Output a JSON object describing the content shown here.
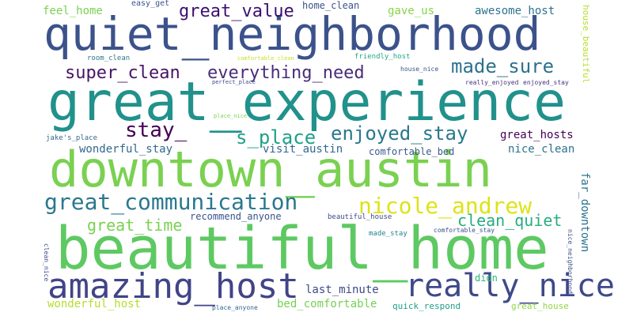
{
  "words": [
    {
      "text": "quiet_neighborhood",
      "color": "#3b528b"
    },
    {
      "text": "great_experience",
      "color": "#21918c"
    },
    {
      "text": "downtown_austin",
      "color": "#7ad151"
    },
    {
      "text": "beautiful_home",
      "color": "#5ec962"
    },
    {
      "text": "amazing_host",
      "color": "#414487"
    },
    {
      "text": "really_nice",
      "color": "#3e4989"
    },
    {
      "text": "great_communication",
      "color": "#2a788e"
    },
    {
      "text": "nicole_andrew",
      "color": "#dde318"
    },
    {
      "text": "made_sure",
      "color": "#2c728e"
    },
    {
      "text": "enjoyed_stay",
      "color": "#2a788e"
    },
    {
      "text": "super_clean",
      "color": "#471365"
    },
    {
      "text": "everything_need",
      "color": "#472c7a"
    },
    {
      "text": "great_value",
      "color": "#3b0f70"
    },
    {
      "text": "stay_",
      "color": "#440154"
    },
    {
      "text": "s_place",
      "color": "#1fa187"
    },
    {
      "text": "clean_quiet",
      "color": "#27ad81"
    },
    {
      "text": "great_time",
      "color": "#7ad151"
    },
    {
      "text": "wonderful_stay",
      "color": "#31688e"
    },
    {
      "text": "great_hosts",
      "color": "#440154"
    },
    {
      "text": "nice_clean",
      "color": "#2c728e"
    },
    {
      "text": "visit_austin",
      "color": "#31688e"
    },
    {
      "text": "comfortable_bed",
      "color": "#38598c"
    },
    {
      "text": "last_minute",
      "color": "#3e4989"
    },
    {
      "text": "wonderful_host",
      "color": "#b5de2b"
    },
    {
      "text": "bed_comfortable",
      "color": "#75d054"
    },
    {
      "text": "feel_home",
      "color": "#7ad151"
    },
    {
      "text": "gave_us",
      "color": "#86d549"
    },
    {
      "text": "awesome_host",
      "color": "#2c728e"
    },
    {
      "text": "home_clean",
      "color": "#3b528b"
    },
    {
      "text": "easy_get",
      "color": "#3b528b"
    },
    {
      "text": "room_clean",
      "color": "#2a788e"
    },
    {
      "text": "comfortable_clean",
      "color": "#c2df23"
    },
    {
      "text": "friendly_host",
      "color": "#22a884"
    },
    {
      "text": "house_nice",
      "color": "#3b528b"
    },
    {
      "text": "really_enjoyed",
      "color": "#46337e"
    },
    {
      "text": "enjoyed_stay",
      "color": "#46337e"
    },
    {
      "text": "perfect_place",
      "color": "#3e4989"
    },
    {
      "text": "place_nice",
      "color": "#7ad151"
    },
    {
      "text": "jake's_place",
      "color": "#31688e"
    },
    {
      "text": "recommend_anyone",
      "color": "#3b528b"
    },
    {
      "text": "beautiful_house",
      "color": "#3e4989"
    },
    {
      "text": "made_stay",
      "color": "#26828e"
    },
    {
      "text": "comfortable_stay",
      "color": "#3b528b"
    },
    {
      "text": "didn",
      "color": "#2fb47c"
    },
    {
      "text": "quick_respond",
      "color": "#1f9e89"
    },
    {
      "text": "great_house",
      "color": "#8fd744"
    },
    {
      "text": "place_anyone",
      "color": "#31688e"
    },
    {
      "text": "far_downtown",
      "color": "#2c728e"
    },
    {
      "text": "house_beautiful",
      "color": "#b5de2b"
    },
    {
      "text": "nice_neighborhood",
      "color": "#3b528b"
    },
    {
      "text": "clean_nice",
      "color": "#3e4989"
    }
  ]
}
